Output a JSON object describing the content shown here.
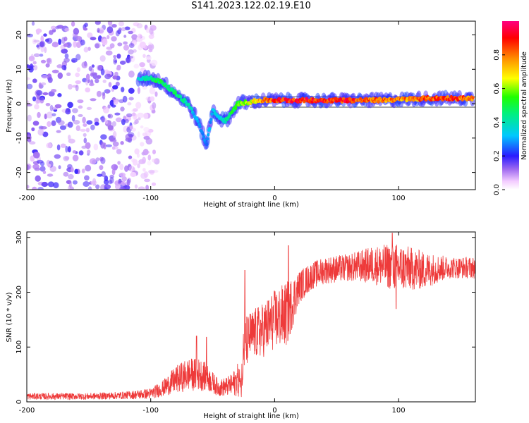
{
  "title": "S141.2023.122.02.19.E10",
  "colors": {
    "axis": "#000000",
    "snr_line": "#ee3a3a",
    "signal_band": "#4a4a4a"
  },
  "colorbar": {
    "label": "Normalized spectral amplitude",
    "range": [
      0,
      1
    ],
    "ticks": [
      0.0,
      0.2,
      0.4,
      0.6,
      0.8
    ],
    "tick_labels": [
      "0.0",
      "0.2",
      "0.4",
      "0.6",
      "0.8"
    ],
    "colormap": "hsv-like: white, violet, blue, cyan, green, yellow, orange, red, magenta"
  },
  "chart_data": [
    {
      "type": "heatmap",
      "title": "",
      "xlabel": "Height of straight line (km)",
      "ylabel": "Frequency (Hz)",
      "xlim": [
        -200,
        162
      ],
      "ylim": [
        -25,
        24
      ],
      "xticks": [
        -200,
        -100,
        0,
        100
      ],
      "xtick_labels": [
        "-200",
        "-100",
        "0",
        "100"
      ],
      "yticks": [
        -20,
        -10,
        0,
        10,
        20
      ],
      "ytick_labels": [
        "-20",
        "-10",
        "0",
        "10",
        "20"
      ],
      "grid": false,
      "ridge": {
        "description": "dominant frequency ridge (normalized amplitude up to ~1)",
        "x": [
          -110,
          -100,
          -90,
          -80,
          -70,
          -65,
          -60,
          -55,
          -50,
          -45,
          -40,
          -35,
          -30,
          -20,
          -10,
          0,
          20,
          40,
          60,
          80,
          100,
          120,
          140,
          160
        ],
        "freq": [
          7,
          7.5,
          6,
          3,
          0,
          -3,
          -7,
          -12,
          -2,
          -4,
          -5,
          -3,
          0,
          0.5,
          1,
          1,
          1,
          1,
          1,
          1,
          1.2,
          1.5,
          1.6,
          1.5
        ],
        "amp": [
          0.4,
          0.5,
          0.55,
          0.5,
          0.45,
          0.35,
          0.3,
          0.3,
          0.35,
          0.4,
          0.45,
          0.55,
          0.6,
          0.7,
          0.85,
          0.95,
          0.98,
          0.98,
          0.98,
          0.9,
          0.85,
          0.9,
          0.95,
          0.9
        ]
      },
      "noise_region": {
        "x_range": [
          -200,
          -95
        ],
        "freq_range": [
          -25,
          24
        ],
        "amp_level": 0.15
      },
      "band_lines": {
        "x_range": [
          -20,
          162
        ],
        "freq": [
          -1,
          2
        ]
      }
    },
    {
      "type": "line",
      "title": "",
      "xlabel": "Height of straight line (km)",
      "ylabel": "SNR (10 * v/v)",
      "xlim": [
        -200,
        162
      ],
      "ylim": [
        0,
        310
      ],
      "xticks": [
        -200,
        -100,
        0,
        100
      ],
      "xtick_labels": [
        "-200",
        "-100",
        "0",
        "100"
      ],
      "yticks": [
        0,
        100,
        200,
        300
      ],
      "ytick_labels": [
        "0",
        "100",
        "200",
        "300"
      ],
      "grid": false,
      "envelope": {
        "x": [
          -200,
          -150,
          -120,
          -100,
          -90,
          -80,
          -70,
          -60,
          -55,
          -45,
          -35,
          -30,
          -27,
          -25,
          -20,
          -10,
          0,
          10,
          20,
          30,
          40,
          60,
          80,
          100,
          120,
          140,
          162
        ],
        "base": [
          10,
          10,
          12,
          15,
          25,
          40,
          50,
          50,
          45,
          25,
          30,
          40,
          35,
          100,
          120,
          130,
          150,
          160,
          210,
          230,
          240,
          245,
          250,
          245,
          240,
          245,
          245
        ],
        "var": [
          6,
          6,
          7,
          10,
          15,
          25,
          30,
          30,
          25,
          15,
          20,
          30,
          30,
          50,
          45,
          50,
          55,
          60,
          30,
          25,
          25,
          25,
          35,
          45,
          35,
          20,
          20
        ]
      },
      "peaks": [
        {
          "x": -63,
          "y": 120
        },
        {
          "x": -55,
          "y": 118
        },
        {
          "x": -24,
          "y": 240
        },
        {
          "x": 11,
          "y": 285
        },
        {
          "x": 95,
          "y": 308
        },
        {
          "x": 98,
          "y": 170
        }
      ]
    }
  ]
}
